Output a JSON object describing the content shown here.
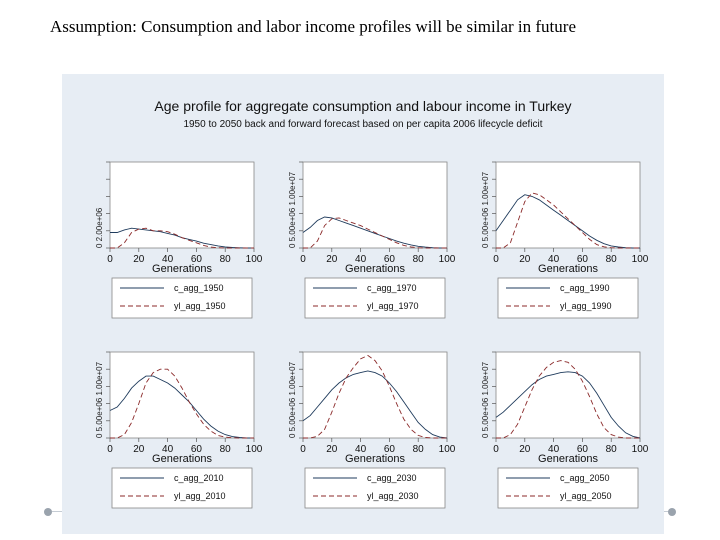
{
  "slide": {
    "title": "Assumption: Consumption and labor income profiles will be similar in future"
  },
  "figure": {
    "title": "Age profile for aggregate consumption and labour income in Turkey",
    "subtitle": "1950 to 2050 back and forward forecast based on per capita 2006 lifecycle deficit"
  },
  "colors": {
    "panel_bg": "#e7edf4",
    "plot_bg": "#ffffff",
    "series_consumption": "#1f3b5c",
    "series_labor": "#8b2a2a"
  },
  "chart_data": [
    {
      "type": "line",
      "year": "1950",
      "xlabel": "Generations",
      "xlim": [
        0,
        100
      ],
      "ylim": [
        0,
        5
      ],
      "xticks": [
        "0",
        "20",
        "40",
        "60",
        "80",
        "100"
      ],
      "y_tick_label": "0 2.00e+06",
      "series": [
        {
          "name": "c_agg_1950",
          "style": "solid",
          "x": [
            0,
            5,
            10,
            15,
            20,
            25,
            30,
            35,
            40,
            45,
            50,
            55,
            60,
            65,
            70,
            75,
            80,
            85,
            90,
            95,
            100
          ],
          "y": [
            0.9,
            0.9,
            1.05,
            1.15,
            1.1,
            1.05,
            1.0,
            0.95,
            0.85,
            0.75,
            0.6,
            0.5,
            0.4,
            0.28,
            0.2,
            0.12,
            0.06,
            0.03,
            0.01,
            0.0,
            0.0
          ]
        },
        {
          "name": "yl_agg_1950",
          "style": "dashed",
          "x": [
            0,
            5,
            10,
            15,
            20,
            25,
            30,
            35,
            40,
            45,
            50,
            55,
            60,
            65,
            70,
            75,
            80,
            85,
            90,
            95,
            100
          ],
          "y": [
            0.0,
            0.0,
            0.3,
            0.9,
            1.1,
            1.15,
            1.0,
            1.0,
            0.95,
            0.8,
            0.6,
            0.45,
            0.3,
            0.15,
            0.05,
            0.02,
            0.0,
            0.0,
            0.0,
            0.0,
            0.0
          ]
        }
      ]
    },
    {
      "type": "line",
      "year": "1970",
      "xlabel": "Generations",
      "xlim": [
        0,
        100
      ],
      "ylim": [
        0,
        5
      ],
      "xticks": [
        "0",
        "20",
        "40",
        "60",
        "80",
        "100"
      ],
      "y_tick_label": "0 5.00e+06 1.00e+07",
      "series": [
        {
          "name": "c_agg_1970",
          "style": "solid",
          "x": [
            0,
            5,
            10,
            15,
            20,
            25,
            30,
            35,
            40,
            45,
            50,
            55,
            60,
            65,
            70,
            75,
            80,
            85,
            90,
            95,
            100
          ],
          "y": [
            0.9,
            1.2,
            1.6,
            1.8,
            1.75,
            1.6,
            1.45,
            1.3,
            1.15,
            1.0,
            0.85,
            0.7,
            0.55,
            0.4,
            0.28,
            0.18,
            0.1,
            0.05,
            0.02,
            0.0,
            0.0
          ]
        },
        {
          "name": "yl_agg_1970",
          "style": "dashed",
          "x": [
            0,
            5,
            10,
            15,
            20,
            25,
            30,
            35,
            40,
            45,
            50,
            55,
            60,
            65,
            70,
            75,
            80,
            85,
            90,
            95,
            100
          ],
          "y": [
            0.0,
            0.0,
            0.4,
            1.3,
            1.7,
            1.75,
            1.6,
            1.45,
            1.3,
            1.1,
            0.9,
            0.7,
            0.5,
            0.3,
            0.15,
            0.06,
            0.02,
            0.0,
            0.0,
            0.0,
            0.0
          ]
        }
      ]
    },
    {
      "type": "line",
      "year": "1990",
      "xlabel": "Generations",
      "xlim": [
        0,
        100
      ],
      "ylim": [
        0,
        5
      ],
      "xticks": [
        "0",
        "20",
        "40",
        "60",
        "80",
        "100"
      ],
      "y_tick_label": "0 5.00e+06 1.00e+07",
      "series": [
        {
          "name": "c_agg_1990",
          "style": "solid",
          "x": [
            0,
            5,
            10,
            15,
            20,
            25,
            30,
            35,
            40,
            45,
            50,
            55,
            60,
            65,
            70,
            75,
            80,
            85,
            90,
            95,
            100
          ],
          "y": [
            1.0,
            1.6,
            2.2,
            2.8,
            3.1,
            3.0,
            2.8,
            2.5,
            2.2,
            1.9,
            1.6,
            1.3,
            1.0,
            0.7,
            0.45,
            0.25,
            0.12,
            0.06,
            0.02,
            0.0,
            0.0
          ]
        },
        {
          "name": "yl_agg_1990",
          "style": "dashed",
          "x": [
            0,
            5,
            10,
            15,
            20,
            25,
            30,
            35,
            40,
            45,
            50,
            55,
            60,
            65,
            70,
            75,
            80,
            85,
            90,
            95,
            100
          ],
          "y": [
            0.0,
            0.0,
            0.3,
            1.5,
            2.7,
            3.2,
            3.1,
            2.8,
            2.5,
            2.1,
            1.7,
            1.3,
            0.9,
            0.5,
            0.2,
            0.07,
            0.02,
            0.0,
            0.0,
            0.0,
            0.0
          ]
        }
      ]
    },
    {
      "type": "line",
      "year": "2010",
      "xlabel": "Generations",
      "xlim": [
        0,
        100
      ],
      "ylim": [
        0,
        5
      ],
      "xticks": [
        "0",
        "20",
        "40",
        "60",
        "80",
        "100"
      ],
      "y_tick_label": "0 5.00e+06 1.00e+07",
      "series": [
        {
          "name": "c_agg_2010",
          "style": "solid",
          "x": [
            0,
            5,
            10,
            15,
            20,
            25,
            30,
            35,
            40,
            45,
            50,
            55,
            60,
            65,
            70,
            75,
            80,
            85,
            90,
            95,
            100
          ],
          "y": [
            1.6,
            1.8,
            2.3,
            2.9,
            3.3,
            3.6,
            3.6,
            3.4,
            3.2,
            2.9,
            2.5,
            2.1,
            1.6,
            1.1,
            0.7,
            0.4,
            0.2,
            0.08,
            0.03,
            0.0,
            0.0
          ]
        },
        {
          "name": "yl_agg_2010",
          "style": "dashed",
          "x": [
            0,
            5,
            10,
            15,
            20,
            25,
            30,
            35,
            40,
            45,
            50,
            55,
            60,
            65,
            70,
            75,
            80,
            85,
            90,
            95,
            100
          ],
          "y": [
            0.0,
            0.0,
            0.2,
            0.9,
            2.0,
            3.2,
            3.8,
            4.0,
            4.0,
            3.6,
            2.9,
            2.1,
            1.4,
            0.8,
            0.4,
            0.15,
            0.05,
            0.01,
            0.0,
            0.0,
            0.0
          ]
        }
      ]
    },
    {
      "type": "line",
      "year": "2030",
      "xlabel": "Generations",
      "xlim": [
        0,
        100
      ],
      "ylim": [
        0,
        5
      ],
      "xticks": [
        "0",
        "20",
        "40",
        "60",
        "80",
        "100"
      ],
      "y_tick_label": "0 5.00e+06 1.00e+07",
      "series": [
        {
          "name": "c_agg_2030",
          "style": "solid",
          "x": [
            0,
            5,
            10,
            15,
            20,
            25,
            30,
            35,
            40,
            45,
            50,
            55,
            60,
            65,
            70,
            75,
            80,
            85,
            90,
            95,
            100
          ],
          "y": [
            1.0,
            1.3,
            1.8,
            2.3,
            2.8,
            3.2,
            3.5,
            3.7,
            3.8,
            3.9,
            3.8,
            3.6,
            3.2,
            2.7,
            2.1,
            1.5,
            0.9,
            0.5,
            0.2,
            0.05,
            0.0
          ]
        },
        {
          "name": "yl_agg_2030",
          "style": "dashed",
          "x": [
            0,
            5,
            10,
            15,
            20,
            25,
            30,
            35,
            40,
            45,
            50,
            55,
            60,
            65,
            70,
            75,
            80,
            85,
            90,
            95,
            100
          ],
          "y": [
            0.0,
            0.0,
            0.1,
            0.5,
            1.5,
            2.6,
            3.5,
            4.1,
            4.6,
            4.8,
            4.5,
            3.9,
            3.0,
            2.0,
            1.1,
            0.5,
            0.15,
            0.03,
            0.0,
            0.0,
            0.0
          ]
        }
      ]
    },
    {
      "type": "line",
      "year": "2050",
      "xlabel": "Generations",
      "xlim": [
        0,
        100
      ],
      "ylim": [
        0,
        5
      ],
      "xticks": [
        "0",
        "20",
        "40",
        "60",
        "80",
        "100"
      ],
      "y_tick_label": "0 5.00e+06 1.00e+07",
      "series": [
        {
          "name": "c_agg_2050",
          "style": "solid",
          "x": [
            0,
            5,
            10,
            15,
            20,
            25,
            30,
            35,
            40,
            45,
            50,
            55,
            60,
            65,
            70,
            75,
            80,
            85,
            90,
            95,
            100
          ],
          "y": [
            1.2,
            1.5,
            1.9,
            2.3,
            2.7,
            3.1,
            3.4,
            3.6,
            3.7,
            3.8,
            3.85,
            3.8,
            3.6,
            3.2,
            2.6,
            1.9,
            1.2,
            0.7,
            0.3,
            0.1,
            0.0
          ]
        },
        {
          "name": "yl_agg_2050",
          "style": "dashed",
          "x": [
            0,
            5,
            10,
            15,
            20,
            25,
            30,
            35,
            40,
            45,
            50,
            55,
            60,
            65,
            70,
            75,
            80,
            85,
            90,
            95,
            100
          ],
          "y": [
            0.0,
            0.0,
            0.2,
            0.8,
            1.8,
            2.8,
            3.6,
            4.1,
            4.4,
            4.5,
            4.4,
            4.0,
            3.3,
            2.4,
            1.4,
            0.6,
            0.2,
            0.05,
            0.0,
            0.0,
            0.0
          ]
        }
      ]
    }
  ]
}
